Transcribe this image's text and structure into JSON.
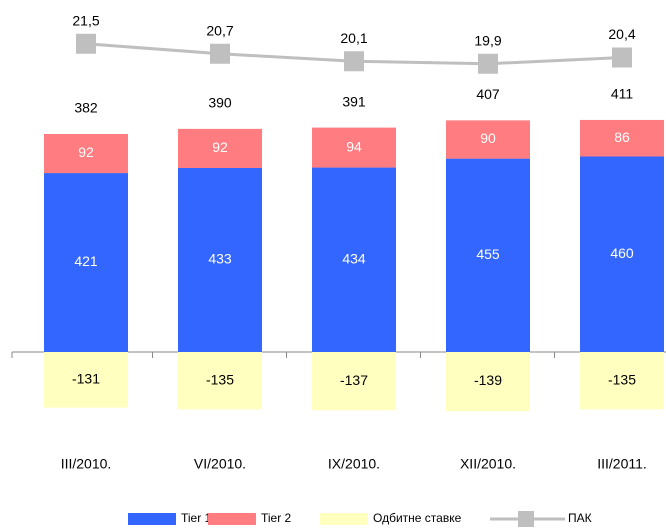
{
  "chart_data": {
    "type": "bar",
    "categories": [
      "III/2010.",
      "VI/2010.",
      "IX/2010.",
      "XII/2010.",
      "III/2011."
    ],
    "series": [
      {
        "name": "Tier 1",
        "color": "#3366ff",
        "values": [
          421,
          433,
          434,
          455,
          460
        ]
      },
      {
        "name": "Tier 2",
        "color": "#ff7c80",
        "values": [
          92,
          92,
          94,
          90,
          86
        ]
      },
      {
        "name": "Одбитне ставке",
        "color": "#ffffc0",
        "values": [
          -131,
          -135,
          -137,
          -139,
          -135
        ]
      },
      {
        "name": "ПАК",
        "type": "line",
        "axis": "y2",
        "color": "#bfbfbf",
        "values": [
          21.5,
          20.7,
          20.1,
          19.9,
          20.4
        ],
        "value_labels": [
          "21,5",
          "20,7",
          "20,1",
          "19,9",
          "20,4"
        ]
      }
    ],
    "totals": [
      382,
      390,
      391,
      407,
      411
    ],
    "ylim": [
      -300,
      600
    ],
    "y2lim": [
      10,
      25
    ]
  }
}
